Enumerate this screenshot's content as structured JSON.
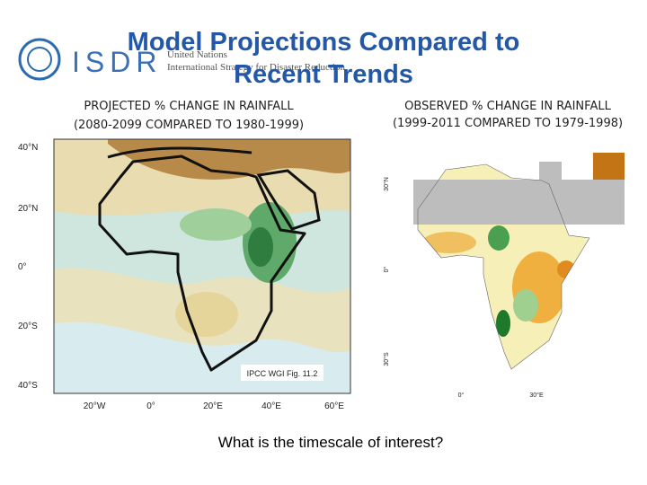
{
  "header": {
    "logo": {
      "acronym": "ISDR",
      "org": "United Nations",
      "name": "International Strategy for Disaster Reduction"
    },
    "title": [
      "Model Projections Compared to",
      "Recent Trends"
    ]
  },
  "left_panel": {
    "caption": [
      "PROJECTED % CHANGE IN RAINFALL",
      "(2080-2099 COMPARED TO 1980-1999)"
    ],
    "lat_labels": [
      "40°N",
      "20°N",
      "0°",
      "20°S",
      "40°S"
    ],
    "lon_labels": [
      "20°W",
      "0°",
      "20°E",
      "40°E",
      "60°E"
    ],
    "credit": "IPCC WGI Fig. 11.2"
  },
  "right_panel": {
    "caption": [
      "OBSERVED % CHANGE IN RAINFALL",
      "(1999-2011 COMPARED TO 1979-1998)"
    ],
    "lat_labels": [
      "30°N",
      "0°",
      "30°S"
    ],
    "lon_labels": [
      "0°",
      "30°E"
    ]
  },
  "question": "What is the timescale of interest?"
}
